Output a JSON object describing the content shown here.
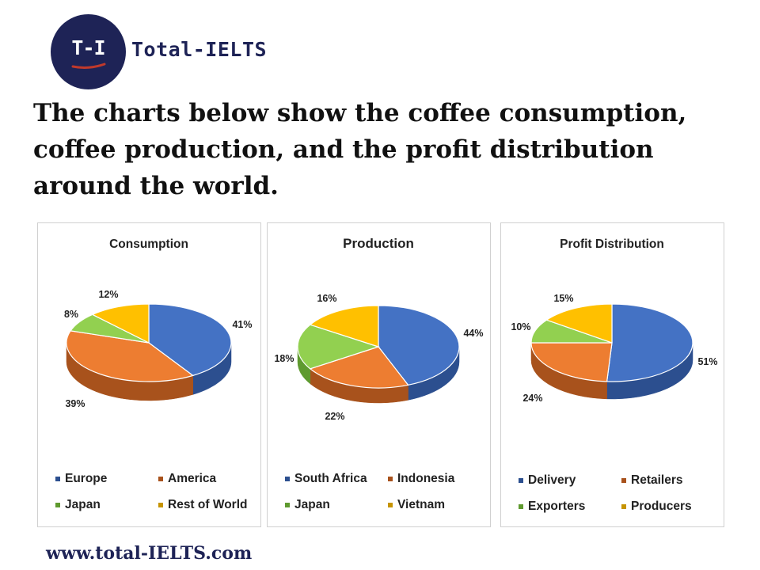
{
  "brand": {
    "logo_text": "T-I",
    "name": "Total-IELTS"
  },
  "headline": "The charts below show the coffee consumption, coffee production, and the profit distribution around the world.",
  "footer_url": "www.total-IELTS.com",
  "colors": {
    "blue": "#4472c4",
    "blue_side": "#2c4f8f",
    "orange": "#ed7d31",
    "orange_side": "#a8521c",
    "green": "#92d050",
    "green_side": "#5f9a2f",
    "gold": "#ffc000",
    "gold_side": "#c69400"
  },
  "chart_data": [
    {
      "type": "pie",
      "title": "Consumption",
      "categories": [
        "Europe",
        "America",
        "Japan",
        "Rest of World"
      ],
      "values": [
        41,
        39,
        8,
        12
      ],
      "value_labels": [
        "41%",
        "39%",
        "8%",
        "12%"
      ],
      "legend_position": "bottom",
      "three_d": true
    },
    {
      "type": "pie",
      "title": "Production",
      "categories": [
        "South Africa",
        "Indonesia",
        "Japan",
        "Vietnam"
      ],
      "values": [
        44,
        22,
        18,
        16
      ],
      "value_labels": [
        "44%",
        "22%",
        "18%",
        "16%"
      ],
      "legend_position": "bottom",
      "three_d": true
    },
    {
      "type": "pie",
      "title": "Profit Distribution",
      "categories": [
        "Delivery",
        "Retailers",
        "Exporters",
        "Producers"
      ],
      "values": [
        51,
        24,
        10,
        15
      ],
      "value_labels": [
        "51%",
        "24%",
        "10%",
        "15%"
      ],
      "legend_position": "bottom",
      "three_d": true
    }
  ]
}
